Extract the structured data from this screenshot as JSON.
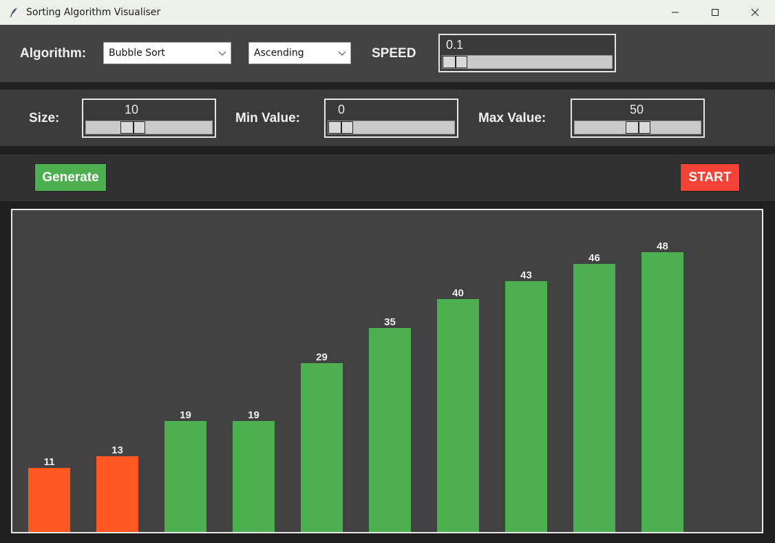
{
  "window": {
    "title": "Sorting Algorithm Visualiser"
  },
  "controls": {
    "algorithm_label": "Algorithm:",
    "algorithm_value": "Bubble Sort",
    "order_value": "Ascending",
    "speed_label": "SPEED",
    "speed_value": "0.1",
    "size_label": "Size:",
    "size_value": "10",
    "min_label": "Min Value:",
    "min_value": "0",
    "max_label": "Max Value:",
    "max_value": "50"
  },
  "buttons": {
    "generate": "Generate",
    "start": "START"
  },
  "colors": {
    "sorted": "#4caf50",
    "comparing": "#ff5722",
    "generate": "#4caf50",
    "start": "#f44336"
  },
  "chart_data": {
    "type": "bar",
    "values": [
      11,
      13,
      19,
      19,
      29,
      35,
      40,
      43,
      46,
      48
    ],
    "labels": [
      "11",
      "13",
      "19",
      "19",
      "29",
      "35",
      "40",
      "43",
      "46",
      "48"
    ],
    "highlight": [
      "comparing",
      "comparing",
      "sorted",
      "sorted",
      "sorted",
      "sorted",
      "sorted",
      "sorted",
      "sorted",
      "sorted"
    ]
  }
}
